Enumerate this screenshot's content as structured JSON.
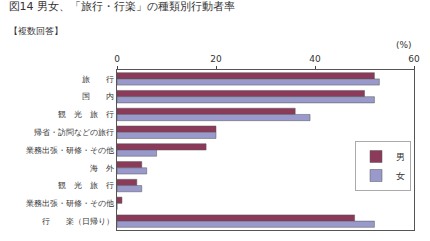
{
  "chart_data": {
    "type": "bar",
    "orientation": "horizontal",
    "title": "図14 男女、「旅行・行楽」の種類別行動者率",
    "subtitle": "【複数回答】",
    "xlabel": "(%)",
    "categories": [
      "旅　　行",
      "　国　　内",
      "　　観　光　旅　行",
      "　　帰省・訪問などの旅行",
      "　　業務出張・研修・その他",
      "　海　外",
      "　　観　光　旅　行",
      "　　業務出張・研修・その他",
      "行　　楽（日帰り）"
    ],
    "series": [
      {
        "name": "男",
        "color": "#8B3A5A",
        "values": [
          52,
          50,
          36,
          20,
          18,
          5,
          4,
          1,
          48
        ]
      },
      {
        "name": "女",
        "color": "#9999CC",
        "values": [
          53,
          52,
          39,
          20,
          8,
          6,
          5,
          0,
          52
        ]
      }
    ],
    "xlim": [
      0,
      60
    ],
    "xticks": [
      0,
      20,
      40,
      60
    ],
    "grid": false,
    "legend": "center right"
  }
}
